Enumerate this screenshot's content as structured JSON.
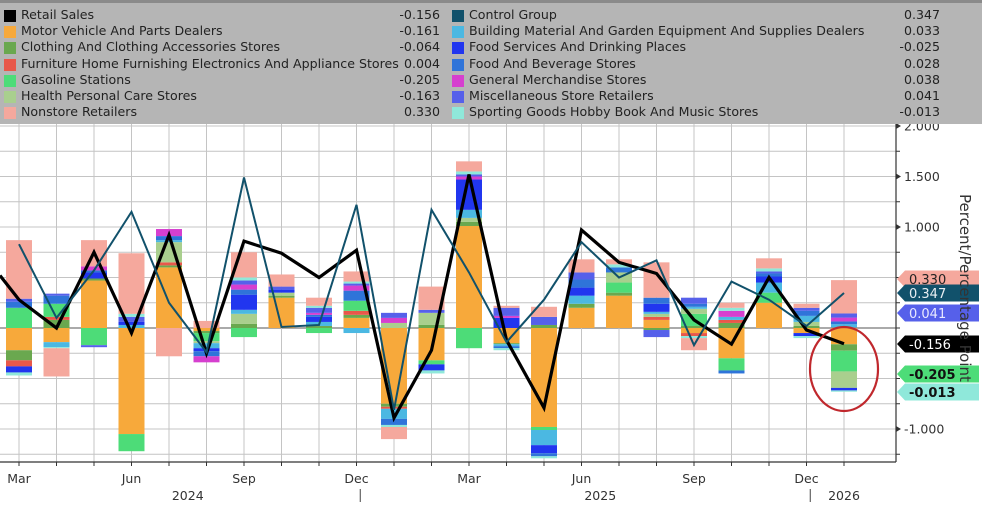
{
  "legend": {
    "left": [
      {
        "name": "Retail Sales",
        "value": "-0.156",
        "color": "#000000"
      },
      {
        "name": "Motor Vehicle And Parts Dealers",
        "value": "-0.161",
        "color": "#f7a93b"
      },
      {
        "name": "Clothing And Clothing Accessories Stores",
        "value": "-0.064",
        "color": "#6aa84f"
      },
      {
        "name": "Furniture Home Furnishing Electronics And Appliance Stores",
        "value": "0.004",
        "color": "#e8584a"
      },
      {
        "name": "Gasoline Stations",
        "value": "-0.205",
        "color": "#4ddc78"
      },
      {
        "name": "Health Personal Care Stores",
        "value": "-0.163",
        "color": "#a9cf8e"
      },
      {
        "name": "Nonstore Retailers",
        "value": "0.330",
        "color": "#f5a89d"
      }
    ],
    "right": [
      {
        "name": "Control Group",
        "value": "0.347",
        "color": "#11516b"
      },
      {
        "name": "Building Material And Garden Equipment And Supplies Dealers",
        "value": "0.033",
        "color": "#4bb8e2"
      },
      {
        "name": "Food Services And Drinking Places",
        "value": "-0.025",
        "color": "#2136ef"
      },
      {
        "name": "Food And Beverage Stores",
        "value": "0.028",
        "color": "#2f74d9"
      },
      {
        "name": "General Merchandise Stores",
        "value": "0.038",
        "color": "#d63fcf"
      },
      {
        "name": "Miscellaneous Store Retailers",
        "value": "0.041",
        "color": "#5660ea"
      },
      {
        "name": "Sporting Goods Hobby Book And Music Stores",
        "value": "-0.013",
        "color": "#8fe8da"
      }
    ]
  },
  "chart_data": {
    "type": "bar",
    "subtype": "stacked bar with line overlays",
    "title": "",
    "ylabel": "Percent/Percentage Point",
    "ylim": [
      -1.35,
      2.0
    ],
    "yticks": [
      "2.000",
      "1.500",
      "1.000",
      "-1.000"
    ],
    "ytick_values": [
      2.0,
      1.5,
      1.0,
      -1.0
    ],
    "grid": true,
    "x_labels": [
      {
        "label": "Mar",
        "index": 0
      },
      {
        "label": "Jun",
        "index": 3
      },
      {
        "label": "Sep",
        "index": 6
      },
      {
        "label": "Dec",
        "index": 9
      },
      {
        "label": "Mar",
        "index": 12
      },
      {
        "label": "Jun",
        "index": 15
      },
      {
        "label": "Sep",
        "index": 18
      },
      {
        "label": "Dec",
        "index": 21
      }
    ],
    "year_labels": [
      {
        "label": "2024",
        "index": 4.5
      },
      {
        "label": "2025",
        "index": 15.5
      },
      {
        "label": "2026",
        "index": 22
      }
    ],
    "categories": [
      "Mar 2024",
      "Apr 2024",
      "May 2024",
      "Jun 2024",
      "Jul 2024",
      "Aug 2024",
      "Sep 2024",
      "Oct 2024",
      "Nov 2024",
      "Dec 2024",
      "Jan 2025",
      "Feb 2025",
      "Mar 2025",
      "Apr 2025",
      "May 2025",
      "Jun 2025",
      "Jul 2025",
      "Aug 2025",
      "Sep 2025",
      "Oct 2025",
      "Nov 2025",
      "Dec 2025",
      "Jan 2026"
    ],
    "stack_order": [
      "Motor Vehicle And Parts Dealers",
      "Clothing And Clothing Accessories Stores",
      "Furniture Home Furnishing Electronics And Appliance Stores",
      "Gasoline Stations",
      "Health Personal Care Stores",
      "Building Material And Garden Equipment And Supplies Dealers",
      "Food Services And Drinking Places",
      "Food And Beverage Stores",
      "General Merchandise Stores",
      "Miscellaneous Store Retailers",
      "Sporting Goods Hobby Book And Music Stores",
      "Nonstore Retailers"
    ],
    "series": [
      {
        "name": "Motor Vehicle And Parts Dealers",
        "color": "#f7a93b",
        "values": [
          -0.22,
          -0.14,
          0.47,
          -1.05,
          0.6,
          -0.03,
          0.0,
          0.3,
          0.0,
          0.1,
          -0.75,
          -0.32,
          1.01,
          -0.15,
          -0.98,
          0.2,
          0.32,
          0.08,
          -0.05,
          -0.3,
          0.25,
          -0.05,
          -0.161
        ]
      },
      {
        "name": "Clothing And Clothing Accessories Stores",
        "color": "#6aa84f",
        "values": [
          -0.1,
          0.08,
          0.02,
          0.0,
          0.02,
          -0.02,
          0.04,
          0.02,
          0.02,
          0.03,
          -0.03,
          0.03,
          0.04,
          -0.01,
          0.03,
          0.04,
          0.03,
          -0.02,
          0.02,
          0.05,
          0.0,
          0.02,
          -0.064
        ]
      },
      {
        "name": "Furniture Home Furnishing Electronics And Appliance Stores",
        "color": "#e8584a",
        "values": [
          -0.06,
          0.03,
          0.0,
          0.0,
          0.03,
          0.0,
          0.0,
          0.0,
          0.0,
          0.04,
          -0.02,
          0.0,
          0.0,
          0.0,
          0.0,
          0.0,
          0.0,
          0.03,
          -0.03,
          0.03,
          0.0,
          0.0,
          0.004
        ]
      },
      {
        "name": "Gasoline Stations",
        "color": "#4ddc78",
        "values": [
          0.2,
          0.13,
          -0.17,
          -0.17,
          0.0,
          -0.08,
          -0.09,
          0.0,
          -0.05,
          0.1,
          0.0,
          -0.04,
          -0.2,
          0.0,
          -0.03,
          0.0,
          0.1,
          0.0,
          0.12,
          -0.12,
          0.1,
          0.0,
          -0.205
        ]
      },
      {
        "name": "Health Personal Care Stores",
        "color": "#a9cf8e",
        "values": [
          0.0,
          0.0,
          0.0,
          0.0,
          0.2,
          -0.02,
          0.1,
          0.03,
          0.0,
          0.0,
          0.05,
          0.12,
          0.04,
          0.0,
          0.0,
          0.0,
          0.1,
          0.03,
          0.05,
          0.0,
          0.0,
          0.04,
          -0.163
        ]
      },
      {
        "name": "Building Material And Garden Equipment And Supplies Dealers",
        "color": "#4bb8e2",
        "values": [
          0.0,
          -0.05,
          0.0,
          0.03,
          0.02,
          -0.05,
          0.04,
          0.0,
          0.04,
          -0.05,
          -0.1,
          0.0,
          0.08,
          -0.02,
          -0.15,
          0.08,
          0.0,
          0.02,
          0.02,
          0.03,
          0.1,
          0.06,
          0.033
        ]
      },
      {
        "name": "Food Services And Drinking Places",
        "color": "#2136ef",
        "values": [
          -0.06,
          0.0,
          0.06,
          0.03,
          0.0,
          -0.03,
          0.15,
          0.03,
          0.05,
          0.0,
          0.0,
          -0.06,
          0.3,
          0.1,
          -0.08,
          0.08,
          0.0,
          0.08,
          0.0,
          0.0,
          0.06,
          -0.03,
          -0.025
        ]
      },
      {
        "name": "Food And Beverage Stores",
        "color": "#2f74d9",
        "values": [
          0.06,
          0.08,
          0.02,
          0.0,
          0.04,
          -0.05,
          0.05,
          0.0,
          0.02,
          0.1,
          -0.06,
          0.0,
          0.0,
          -0.02,
          -0.03,
          0.08,
          0.05,
          0.06,
          0.03,
          -0.03,
          0.03,
          0.05,
          0.028
        ]
      },
      {
        "name": "General Merchandise Stores",
        "color": "#d63fcf",
        "values": [
          0.0,
          0.0,
          0.04,
          0.0,
          0.07,
          -0.06,
          0.05,
          0.0,
          0.02,
          0.05,
          0.05,
          0.0,
          0.03,
          0.02,
          0.0,
          0.0,
          0.0,
          0.0,
          0.0,
          0.06,
          0.0,
          0.0,
          0.038
        ]
      },
      {
        "name": "Miscellaneous Store Retailers",
        "color": "#5660ea",
        "values": [
          0.03,
          0.02,
          -0.02,
          0.05,
          0.0,
          0.0,
          0.04,
          0.03,
          0.05,
          0.02,
          0.05,
          0.03,
          0.02,
          0.08,
          0.08,
          0.07,
          0.0,
          -0.07,
          0.06,
          0.0,
          0.02,
          0.03,
          0.041
        ]
      },
      {
        "name": "Sporting Goods Hobby Book And Music Stores",
        "color": "#8fe8da",
        "values": [
          -0.03,
          -0.01,
          0.0,
          0.03,
          0.0,
          0.0,
          0.03,
          0.0,
          0.02,
          0.02,
          -0.02,
          -0.03,
          0.03,
          -0.02,
          -0.02,
          0.0,
          0.03,
          0.0,
          -0.02,
          0.03,
          0.03,
          -0.02,
          -0.013
        ]
      },
      {
        "name": "Nonstore Retailers",
        "color": "#f5a89d",
        "values": [
          0.58,
          -0.28,
          0.26,
          0.6,
          -0.28,
          0.07,
          0.25,
          0.12,
          0.08,
          0.1,
          -0.12,
          0.23,
          0.1,
          0.02,
          0.1,
          0.13,
          0.05,
          0.35,
          -0.12,
          0.05,
          0.1,
          0.04,
          0.33
        ]
      }
    ],
    "lines": [
      {
        "name": "Retail Sales",
        "color": "#000000",
        "start_value": 0.52,
        "values": [
          0.28,
          0.0,
          0.75,
          -0.05,
          0.92,
          -0.25,
          0.86,
          0.74,
          0.5,
          0.77,
          -0.89,
          -0.22,
          1.52,
          -0.12,
          -0.79,
          0.97,
          0.65,
          0.54,
          0.08,
          -0.16,
          0.5,
          -0.02,
          -0.156
        ]
      },
      {
        "name": "Control Group",
        "color": "#11516b",
        "values": [
          0.83,
          0.1,
          0.57,
          1.15,
          0.25,
          -0.24,
          1.49,
          0.01,
          0.03,
          1.22,
          -0.81,
          1.17,
          0.55,
          -0.14,
          0.28,
          0.85,
          0.5,
          0.67,
          -0.17,
          0.46,
          0.28,
          0.02,
          0.347
        ]
      }
    ],
    "value_tags": [
      {
        "label": "0.330",
        "value": 0.33,
        "bg": "#f5a89d",
        "fg": "#222222"
      },
      {
        "label": "0.347",
        "value": 0.347,
        "bg": "#11516b",
        "fg": "#e8eef2"
      },
      {
        "label": "0.041",
        "value": 0.041,
        "bg": "#5660ea",
        "fg": "#e8e8ff"
      },
      {
        "label": "-0.156",
        "value": -0.156,
        "bg": "#000000",
        "fg": "#ffffff"
      },
      {
        "label": "-0.205",
        "value": -0.205,
        "bg": "#4ddc78",
        "fg": "#111111"
      },
      {
        "label": "-0.013",
        "value": -0.013,
        "bg": "#8fe8da",
        "fg": "#111111"
      }
    ],
    "annotation": {
      "type": "ellipse",
      "color": "#c0282d",
      "target": "Jan 2026"
    }
  }
}
